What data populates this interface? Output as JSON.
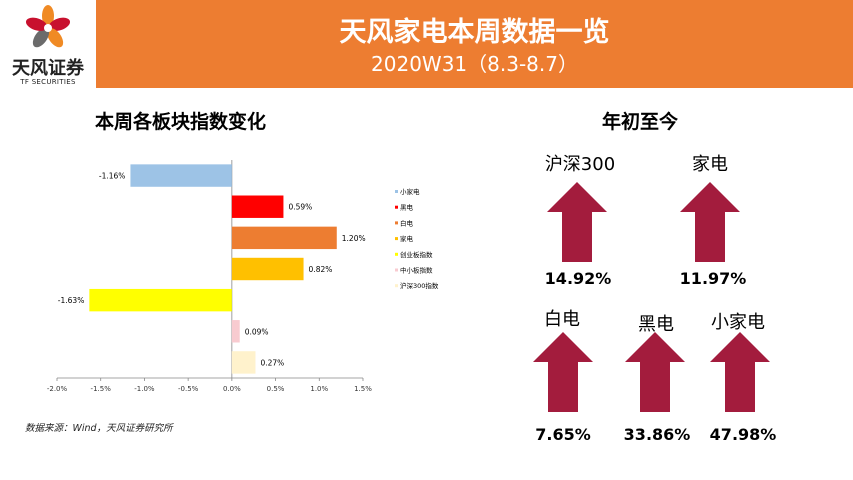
{
  "header": {
    "title": "天风家电本周数据一览",
    "subtitle": "2020W31（8.3-8.7）",
    "logo_name": "天风证券",
    "logo_sub": "TF SECURITIES"
  },
  "colors": {
    "banner": "#ED7D31",
    "arrow": "#A31C3D",
    "logo_orange": "#F08A24",
    "logo_red": "#C8102E"
  },
  "chart_section_title": "本周各板块指数变化",
  "chart_data": {
    "type": "bar",
    "orientation": "horizontal",
    "title": "本周各板块指数变化",
    "categories": [
      "小家电",
      "黑电",
      "白电",
      "家电",
      "创业板指数",
      "中小板指数",
      "沪深300指数"
    ],
    "values": [
      -1.16,
      0.59,
      1.2,
      0.82,
      -1.63,
      0.09,
      0.27
    ],
    "value_labels": [
      "-1.16%",
      "0.59%",
      "1.20%",
      "0.82%",
      "-1.63%",
      "0.09%",
      "0.27%"
    ],
    "colors": [
      "#9DC3E6",
      "#FF0000",
      "#ED7D31",
      "#FFC000",
      "#FFFF00",
      "#F8CBD0",
      "#FFF2CC"
    ],
    "unit": "%",
    "xlim": [
      -2.0,
      1.5
    ],
    "xticks": [
      -2.0,
      -1.5,
      -1.0,
      -0.5,
      0.0,
      0.5,
      1.0,
      1.5
    ],
    "xtick_labels": [
      "-2.0%",
      "-1.5%",
      "-1.0%",
      "-0.5%",
      "0.0%",
      "0.5%",
      "1.0%",
      "1.5%"
    ],
    "legend_position": "right",
    "grid": false
  },
  "source": "数据来源：Wind，天风证券研究所",
  "ytd": {
    "title": "年初至今",
    "items": [
      {
        "label": "沪深300",
        "value": "14.92%"
      },
      {
        "label": "家电",
        "value": "11.97%"
      },
      {
        "label": "白电",
        "value": "7.65%"
      },
      {
        "label": "黑电",
        "value": "33.86%"
      },
      {
        "label": "小家电",
        "value": "47.98%"
      }
    ]
  }
}
